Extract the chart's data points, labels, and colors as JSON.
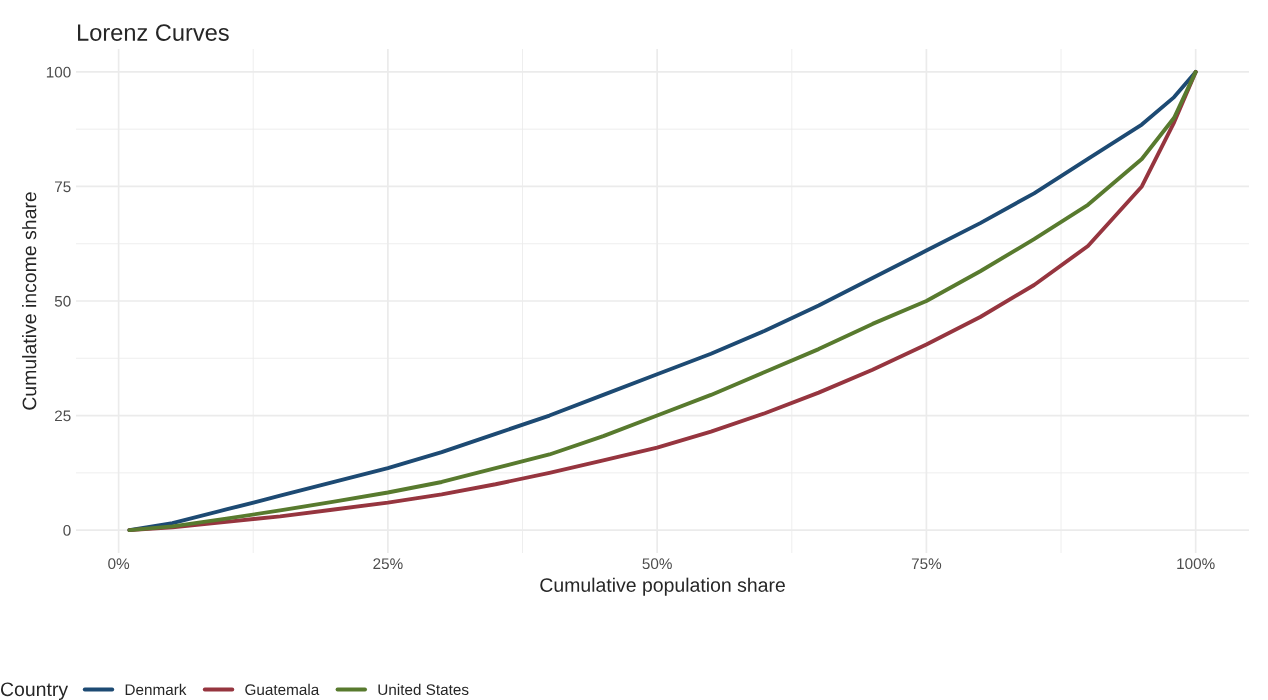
{
  "chart_data": {
    "type": "line",
    "title": "Lorenz Curves",
    "xlabel": "Cumulative population share",
    "ylabel": "Cumulative income share",
    "legend_title": "Country",
    "x": [
      1,
      5,
      10,
      15,
      20,
      25,
      30,
      35,
      40,
      45,
      50,
      55,
      60,
      65,
      70,
      75,
      80,
      85,
      90,
      95,
      98,
      100
    ],
    "series": [
      {
        "name": "Denmark",
        "color": "#1d4a73",
        "values": [
          0,
          1.5,
          4.5,
          7.5,
          10.5,
          13.5,
          17,
          21,
          25,
          29.5,
          34,
          38.5,
          43.5,
          49,
          55,
          61,
          67,
          73.5,
          81,
          88.5,
          94.5,
          100
        ]
      },
      {
        "name": "Guatemala",
        "color": "#96353f",
        "values": [
          0,
          0.6,
          1.8,
          3,
          4.5,
          6,
          7.8,
          10,
          12.5,
          15.2,
          18,
          21.5,
          25.5,
          30,
          35,
          40.5,
          46.5,
          53.5,
          62,
          75,
          89,
          100
        ]
      },
      {
        "name": "United States",
        "color": "#587a2e",
        "values": [
          0,
          0.8,
          2.5,
          4.3,
          6.2,
          8.2,
          10.5,
          13.5,
          16.5,
          20.5,
          25,
          29.5,
          34.5,
          39.5,
          45,
          50,
          56.5,
          63.5,
          71,
          81,
          90,
          100
        ]
      }
    ],
    "xlim": [
      -3.95,
      104.95
    ],
    "ylim": [
      -5,
      105
    ],
    "xticks": [
      {
        "value": 0,
        "label": "0%"
      },
      {
        "value": 25,
        "label": "25%"
      },
      {
        "value": 50,
        "label": "50%"
      },
      {
        "value": 75,
        "label": "75%"
      },
      {
        "value": 100,
        "label": "100%"
      }
    ],
    "yticks": [
      0,
      25,
      50,
      75,
      100
    ],
    "grid": true,
    "legend": "bottom",
    "line_style": "solid",
    "marker": "none"
  }
}
